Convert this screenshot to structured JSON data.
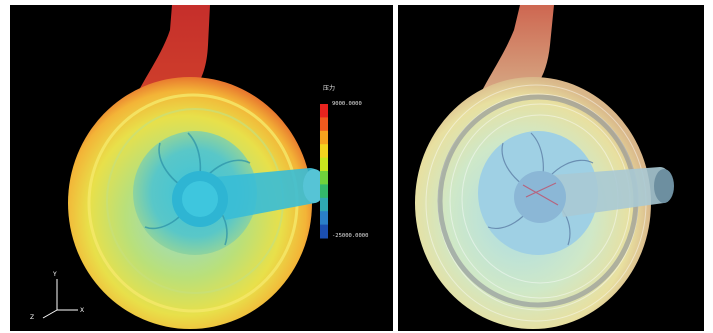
{
  "left_panel": {
    "colorbar": {
      "title": "压力",
      "max_label": "9000.0000",
      "min_label": "-25000.0000",
      "colors": [
        "#e8231e",
        "#f05a1e",
        "#f6a31e",
        "#f3d31e",
        "#c8e61e",
        "#6fd23c",
        "#33b86b",
        "#2fa9b3",
        "#2a7fc8",
        "#1b4fb0"
      ]
    },
    "axes": {
      "y": "Y",
      "x": "X",
      "z": "Z"
    }
  },
  "colors": {
    "background": "#000000",
    "high_pressure": "#d0312d",
    "casing": "#eae04a",
    "impeller": "#3fc3d9"
  }
}
